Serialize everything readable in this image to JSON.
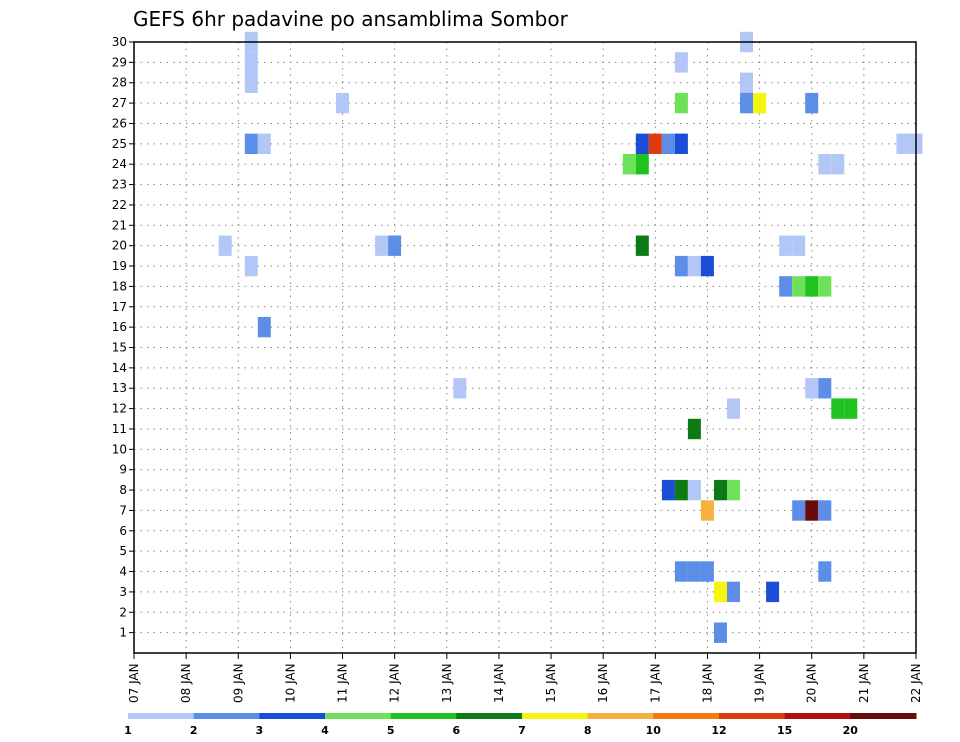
{
  "chart_data": {
    "type": "heatmap",
    "title": "GEFS 6hr padavine po ansamblima Sombor",
    "x_tick_labels": [
      "07 JAN",
      "08 JAN",
      "09 JAN",
      "10 JAN",
      "11 JAN",
      "12 JAN",
      "13 JAN",
      "14 JAN",
      "15 JAN",
      "16 JAN",
      "17 JAN",
      "18 JAN",
      "19 JAN",
      "20 JAN",
      "21 JAN",
      "22 JAN"
    ],
    "x_range_days": [
      7,
      22
    ],
    "y_range": [
      0,
      30
    ],
    "y_ticks": [
      1,
      2,
      3,
      4,
      5,
      6,
      7,
      8,
      9,
      10,
      11,
      12,
      13,
      14,
      15,
      16,
      17,
      18,
      19,
      20,
      21,
      22,
      23,
      24,
      25,
      26,
      27,
      28,
      29,
      30
    ],
    "grid": true,
    "colorbar": {
      "colors": [
        "#b3c7f7",
        "#5c8ee8",
        "#1a4ed6",
        "#6fe05a",
        "#1fc21f",
        "#0e7a16",
        "#f5f50f",
        "#f5b040",
        "#f57a10",
        "#e03a10",
        "#b01010",
        "#6a0a0a"
      ],
      "labels": [
        "1",
        "2",
        "3",
        "4",
        "5",
        "6",
        "7",
        "8",
        "10",
        "12",
        "15",
        "20"
      ]
    },
    "cells": [
      {
        "day": 9.25,
        "member": 30,
        "value": 1
      },
      {
        "day": 9.25,
        "member": 29,
        "value": 1
      },
      {
        "day": 9.25,
        "member": 28,
        "value": 1
      },
      {
        "day": 18.75,
        "member": 30,
        "value": 1
      },
      {
        "day": 17.5,
        "member": 29,
        "value": 1
      },
      {
        "day": 18.75,
        "member": 28,
        "value": 1
      },
      {
        "day": 11.0,
        "member": 27,
        "value": 1
      },
      {
        "day": 17.5,
        "member": 27,
        "value": 4
      },
      {
        "day": 18.75,
        "member": 27,
        "value": 2
      },
      {
        "day": 19.0,
        "member": 27,
        "value": 7
      },
      {
        "day": 20.0,
        "member": 27,
        "value": 2
      },
      {
        "day": 9.25,
        "member": 25,
        "value": 2
      },
      {
        "day": 9.5,
        "member": 25,
        "value": 1
      },
      {
        "day": 16.75,
        "member": 25,
        "value": 3
      },
      {
        "day": 17.0,
        "member": 25,
        "value": 10
      },
      {
        "day": 17.25,
        "member": 25,
        "value": 2
      },
      {
        "day": 17.5,
        "member": 25,
        "value": 3
      },
      {
        "day": 21.75,
        "member": 25,
        "value": 1
      },
      {
        "day": 22.0,
        "member": 25,
        "value": 1
      },
      {
        "day": 16.5,
        "member": 24,
        "value": 4
      },
      {
        "day": 16.75,
        "member": 24,
        "value": 5
      },
      {
        "day": 20.25,
        "member": 24,
        "value": 1
      },
      {
        "day": 20.5,
        "member": 24,
        "value": 1
      },
      {
        "day": 8.75,
        "member": 20,
        "value": 1
      },
      {
        "day": 11.75,
        "member": 20,
        "value": 1
      },
      {
        "day": 12.0,
        "member": 20,
        "value": 2
      },
      {
        "day": 16.75,
        "member": 20,
        "value": 6
      },
      {
        "day": 19.5,
        "member": 20,
        "value": 1
      },
      {
        "day": 19.75,
        "member": 20,
        "value": 1
      },
      {
        "day": 9.25,
        "member": 19,
        "value": 1
      },
      {
        "day": 17.5,
        "member": 19,
        "value": 2
      },
      {
        "day": 17.75,
        "member": 19,
        "value": 1
      },
      {
        "day": 18.0,
        "member": 19,
        "value": 3
      },
      {
        "day": 19.5,
        "member": 18,
        "value": 2
      },
      {
        "day": 19.75,
        "member": 18,
        "value": 4
      },
      {
        "day": 20.0,
        "member": 18,
        "value": 5
      },
      {
        "day": 20.25,
        "member": 18,
        "value": 4
      },
      {
        "day": 9.5,
        "member": 16,
        "value": 2
      },
      {
        "day": 13.25,
        "member": 13,
        "value": 1
      },
      {
        "day": 20.0,
        "member": 13,
        "value": 1
      },
      {
        "day": 20.25,
        "member": 13,
        "value": 2
      },
      {
        "day": 18.5,
        "member": 12,
        "value": 1
      },
      {
        "day": 20.5,
        "member": 12,
        "value": 5
      },
      {
        "day": 20.75,
        "member": 12,
        "value": 5
      },
      {
        "day": 17.75,
        "member": 11,
        "value": 6
      },
      {
        "day": 17.25,
        "member": 8,
        "value": 3
      },
      {
        "day": 17.5,
        "member": 8,
        "value": 6
      },
      {
        "day": 17.75,
        "member": 8,
        "value": 1
      },
      {
        "day": 18.25,
        "member": 8,
        "value": 6
      },
      {
        "day": 18.5,
        "member": 8,
        "value": 4
      },
      {
        "day": 18.0,
        "member": 7,
        "value": 8
      },
      {
        "day": 19.75,
        "member": 7,
        "value": 2
      },
      {
        "day": 20.0,
        "member": 7,
        "value": 12
      },
      {
        "day": 20.25,
        "member": 7,
        "value": 2
      },
      {
        "day": 17.5,
        "member": 4,
        "value": 2
      },
      {
        "day": 17.75,
        "member": 4,
        "value": 2
      },
      {
        "day": 18.0,
        "member": 4,
        "value": 2
      },
      {
        "day": 20.25,
        "member": 4,
        "value": 2
      },
      {
        "day": 18.25,
        "member": 3,
        "value": 7
      },
      {
        "day": 18.5,
        "member": 3,
        "value": 2
      },
      {
        "day": 19.25,
        "member": 3,
        "value": 3
      },
      {
        "day": 18.25,
        "member": 1,
        "value": 2
      }
    ]
  }
}
